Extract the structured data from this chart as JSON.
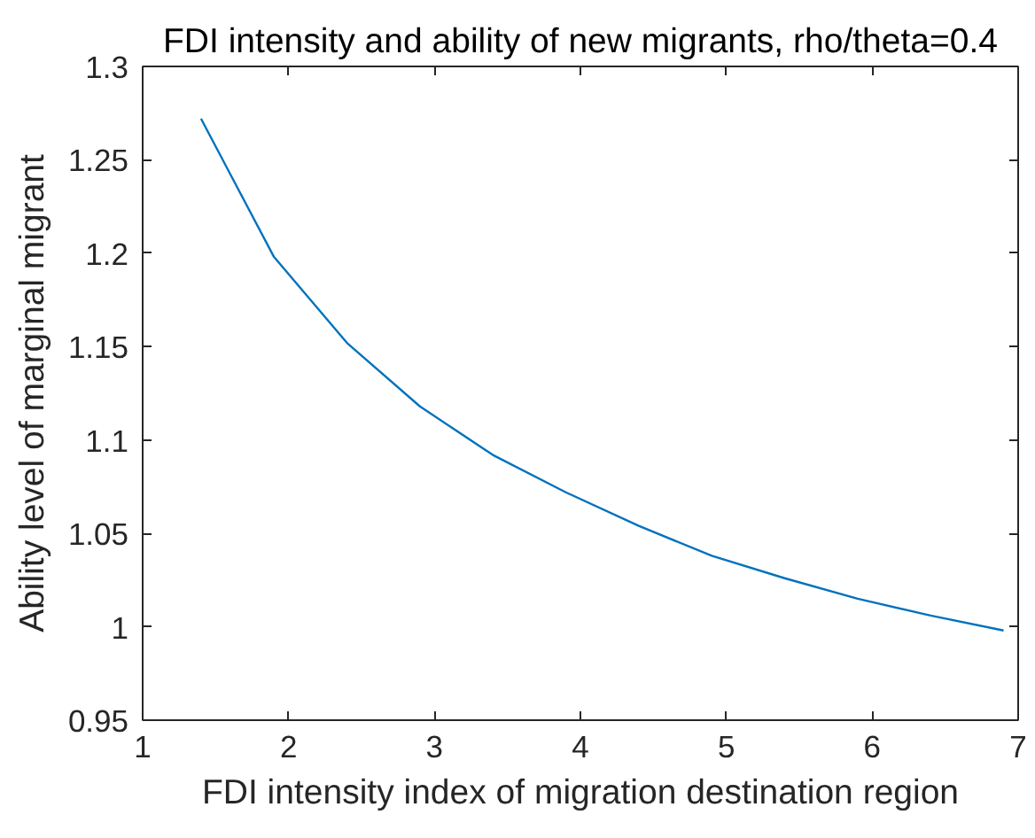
{
  "chart_data": {
    "type": "line",
    "title": "FDI intensity and ability of new migrants, rho/theta=0.4",
    "xlabel": "FDI intensity index of migration destination region",
    "ylabel": "Ability level of marginal migrant",
    "x": [
      1.4,
      1.9,
      2.4,
      2.9,
      3.4,
      3.9,
      4.4,
      4.9,
      5.4,
      5.9,
      6.4,
      6.9
    ],
    "series": [
      {
        "color": "#0072bd",
        "values": [
          1.272,
          1.198,
          1.152,
          1.118,
          1.092,
          1.072,
          1.054,
          1.038,
          1.026,
          1.015,
          1.006,
          0.998
        ]
      }
    ],
    "xlim": [
      1,
      7
    ],
    "ylim": [
      0.95,
      1.3
    ],
    "xticks": [
      1,
      2,
      3,
      4,
      5,
      6,
      7
    ],
    "yticks": [
      0.95,
      1,
      1.05,
      1.1,
      1.15,
      1.2,
      1.25,
      1.3
    ],
    "grid": false
  }
}
